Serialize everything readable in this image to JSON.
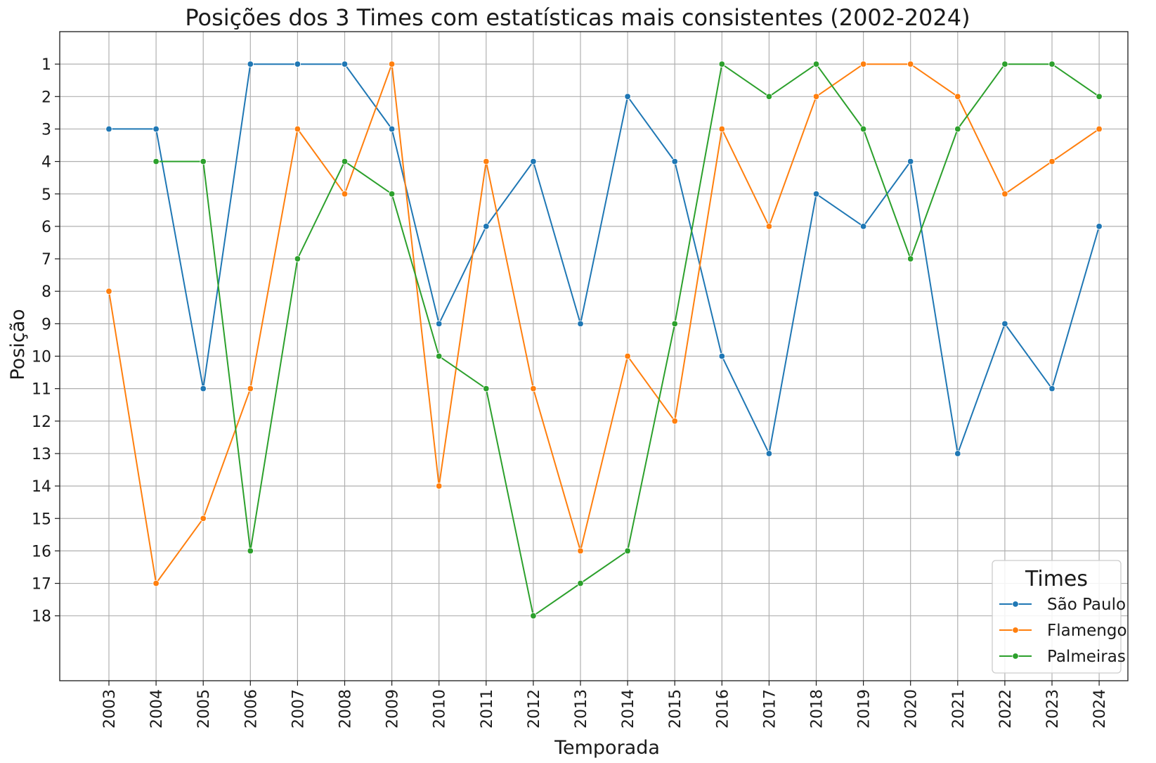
{
  "chart_data": {
    "type": "line",
    "title": "Posições dos 3 Times com estatísticas mais consistentes (2002-2024)",
    "xlabel": "Temporada",
    "ylabel": "Posição",
    "categories": [
      "2003",
      "2004",
      "2005",
      "2006",
      "2007",
      "2008",
      "2009",
      "2010",
      "2011",
      "2012",
      "2013",
      "2014",
      "2015",
      "2016",
      "2017",
      "2018",
      "2019",
      "2020",
      "2021",
      "2022",
      "2023",
      "2024"
    ],
    "y_ticks": [
      "1",
      "2",
      "3",
      "4",
      "5",
      "6",
      "7",
      "8",
      "9",
      "10",
      "11",
      "12",
      "13",
      "14",
      "15",
      "16",
      "17",
      "18"
    ],
    "ylim": [
      20,
      0
    ],
    "y_inverted": true,
    "grid": true,
    "legend": {
      "title": "Times",
      "placement": "bottom-right"
    },
    "series": [
      {
        "name": "São Paulo",
        "color": "#1f77b4",
        "values": [
          3,
          3,
          11,
          1,
          1,
          1,
          3,
          9,
          6,
          4,
          9,
          2,
          4,
          10,
          13,
          5,
          6,
          4,
          13,
          9,
          11,
          6
        ]
      },
      {
        "name": "Flamengo",
        "color": "#ff7f0e",
        "values": [
          8,
          17,
          15,
          11,
          3,
          5,
          1,
          14,
          4,
          11,
          16,
          10,
          12,
          3,
          6,
          2,
          1,
          1,
          2,
          5,
          4,
          3
        ]
      },
      {
        "name": "Palmeiras",
        "color": "#2ca02c",
        "values": [
          null,
          4,
          4,
          16,
          7,
          4,
          5,
          10,
          11,
          18,
          17,
          16,
          9,
          1,
          2,
          1,
          3,
          7,
          3,
          1,
          1,
          2
        ]
      }
    ]
  }
}
